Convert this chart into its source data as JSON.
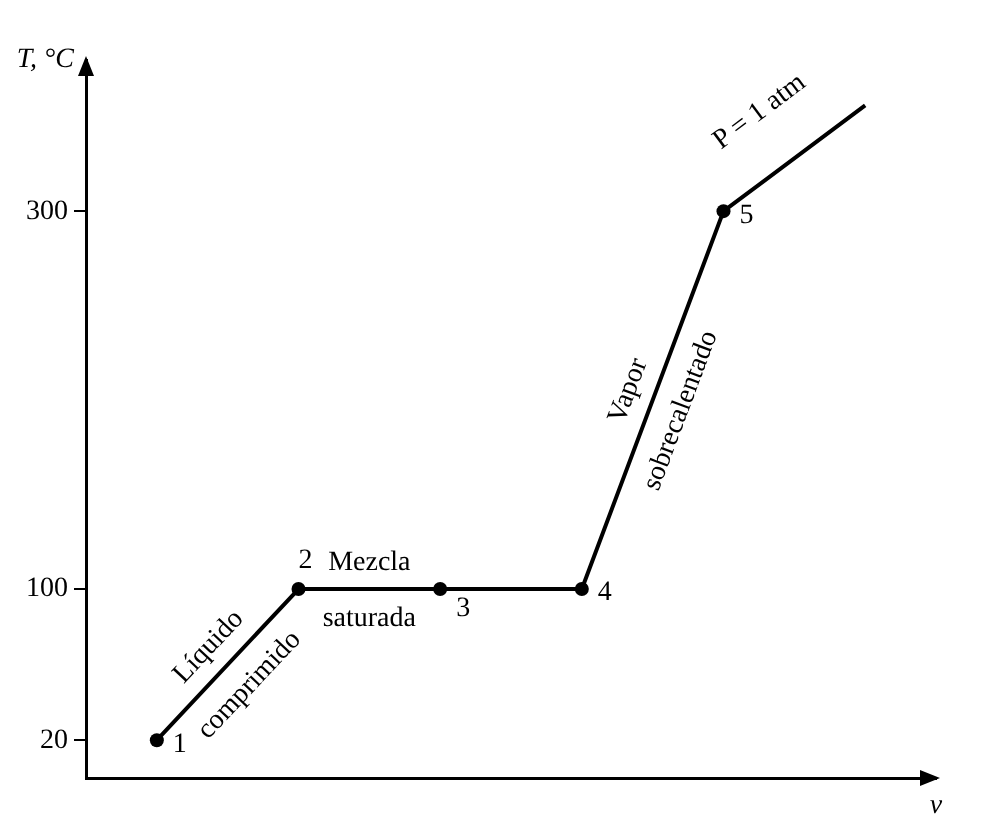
{
  "chart_data": {
    "type": "line",
    "ylabel": "T, °C",
    "xlabel": "v",
    "categories": [
      null,
      null,
      null,
      null,
      null,
      null
    ],
    "values": [
      20,
      100,
      100,
      100,
      300,
      356
    ],
    "color": "#000000",
    "ylim": [
      0,
      380
    ],
    "yticks": [
      20,
      100,
      300
    ],
    "tick_labels": "y",
    "grid": false,
    "legend": false,
    "marker": "circle",
    "line_style": "solid",
    "annotations": [
      "1",
      "2",
      "3",
      "4",
      "5",
      "Líquido\ncomprimido",
      "Mezcla\nsaturada",
      "Vapor\nsobrecalentado",
      "P = 1 atm"
    ]
  }
}
